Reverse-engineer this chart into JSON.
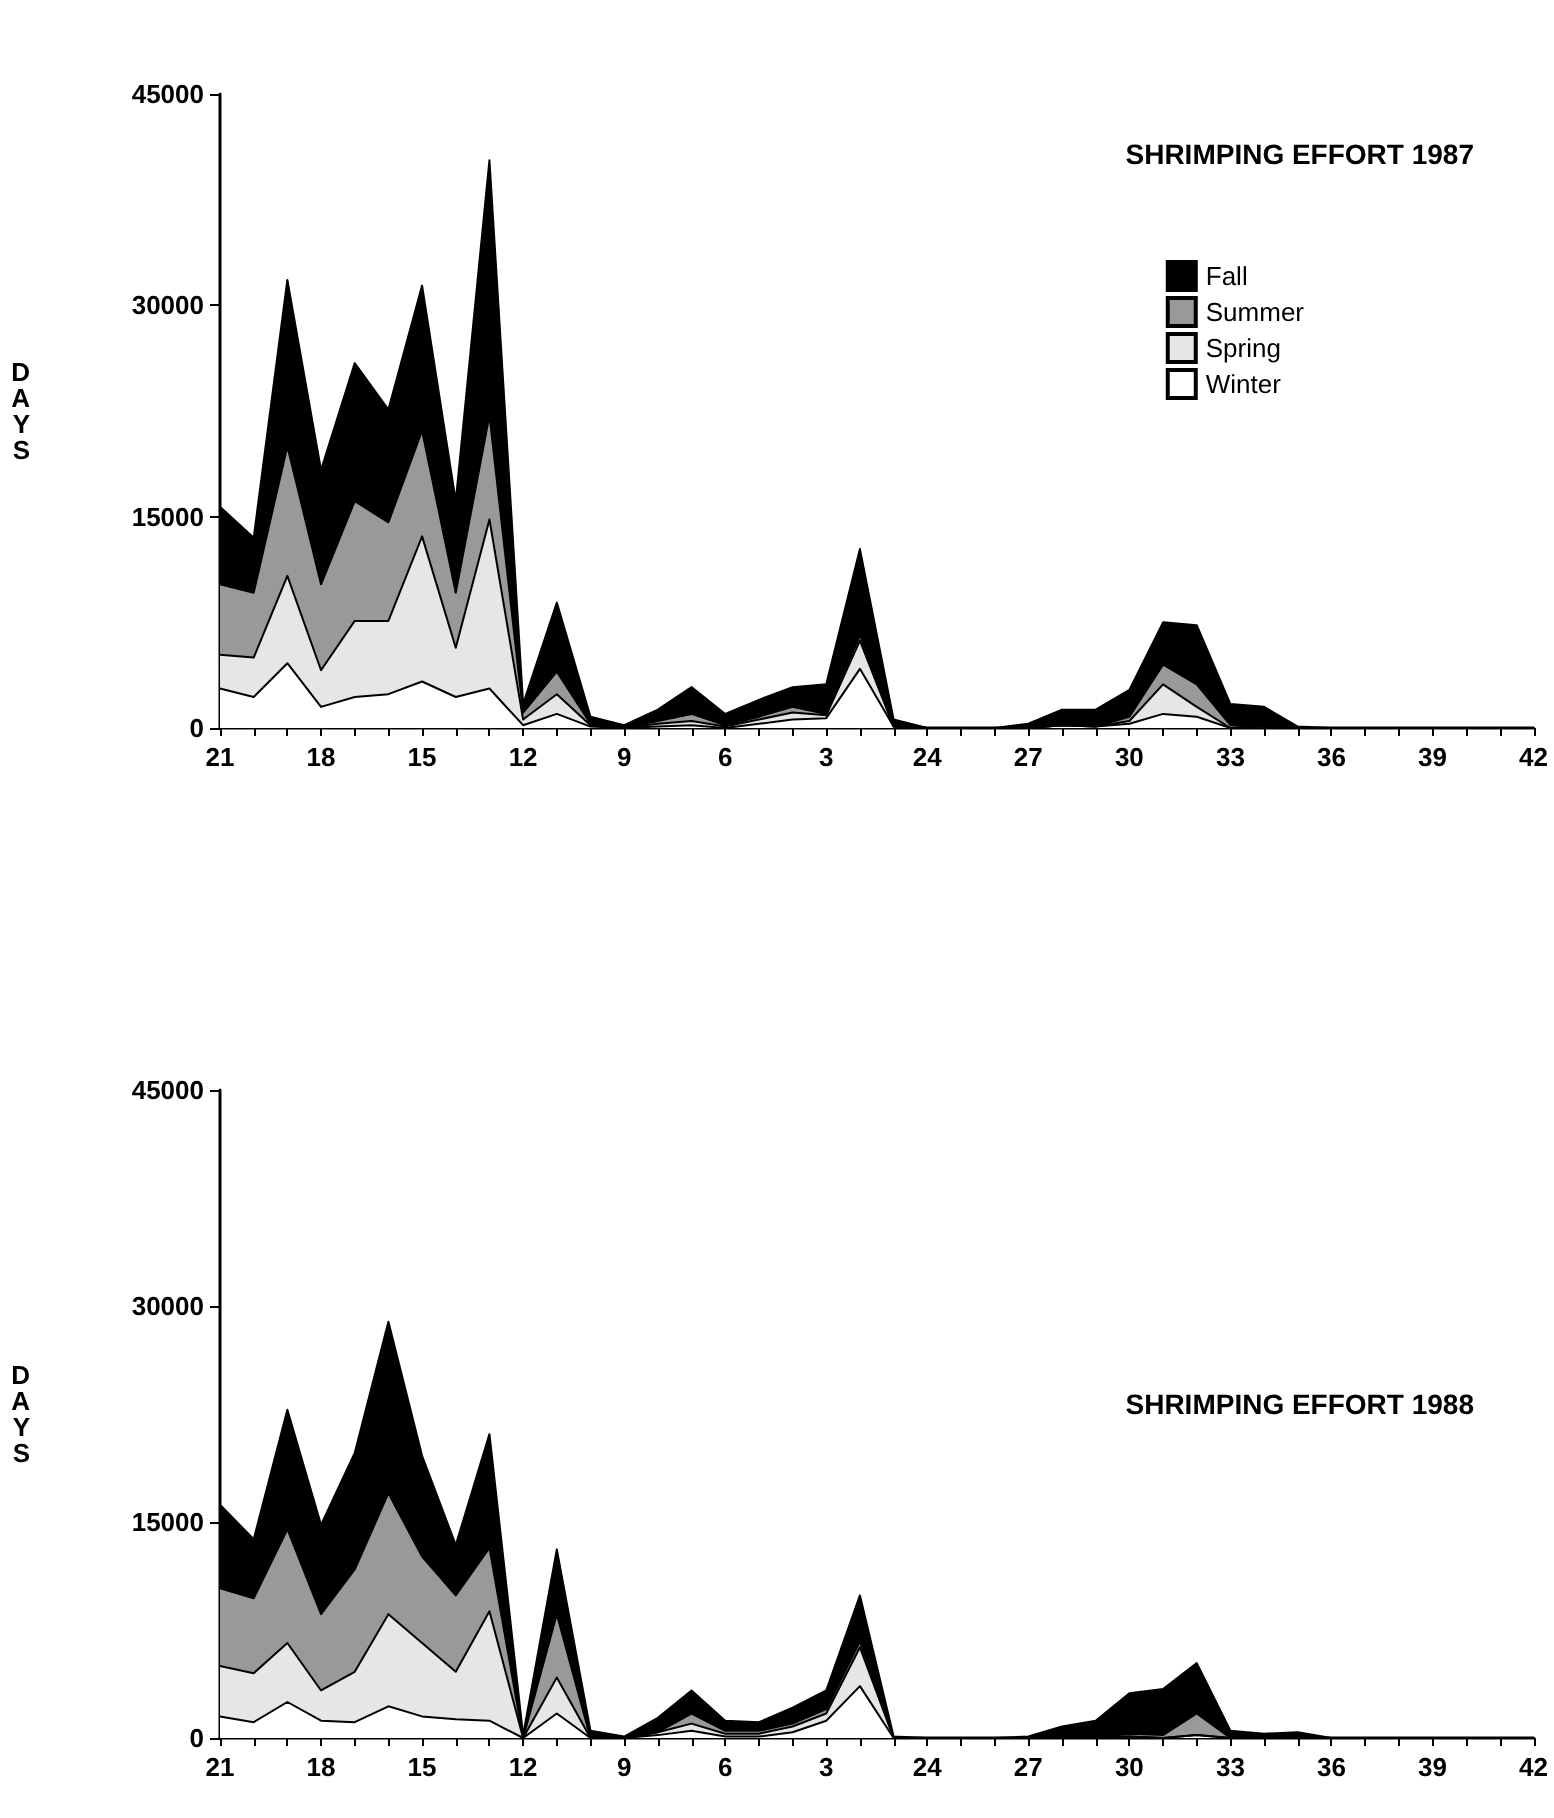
{
  "chart_data": [
    {
      "type": "area",
      "title": "SHRIMPING EFFORT 1987",
      "ylabel": "DAYS",
      "stacked": true,
      "legend": "top right",
      "categories": [
        "21",
        null,
        null,
        "18",
        null,
        null,
        "15",
        null,
        null,
        "12",
        null,
        null,
        "9",
        null,
        null,
        "6",
        null,
        null,
        "3",
        null,
        null,
        "24",
        null,
        null,
        "27",
        null,
        null,
        "30",
        null,
        null,
        "33",
        null,
        null,
        "36",
        null,
        null,
        "39",
        null,
        null,
        "42"
      ],
      "ylim": [
        0,
        45000
      ],
      "yticks": [
        0,
        15000,
        30000,
        45000
      ],
      "series": [
        {
          "name": "Winter",
          "color": "#ffffff",
          "values": [
            2800,
            2200,
            4600,
            1500,
            2200,
            2400,
            3300,
            2200,
            2800,
            200,
            1000,
            100,
            0,
            100,
            200,
            0,
            300,
            600,
            700,
            4200,
            100,
            0,
            0,
            0,
            0,
            200,
            100,
            300,
            1000,
            800,
            0,
            100,
            0,
            0,
            0,
            0,
            0,
            0,
            0,
            0
          ]
        },
        {
          "name": "Spring",
          "color": "#e6e6e6",
          "values": [
            2400,
            2800,
            6200,
            2600,
            5400,
            5200,
            10300,
            3500,
            12000,
            400,
            1400,
            100,
            0,
            200,
            300,
            100,
            300,
            500,
            200,
            2000,
            0,
            0,
            0,
            0,
            0,
            0,
            0,
            200,
            2100,
            700,
            0,
            0,
            0,
            0,
            0,
            0,
            0,
            0,
            0,
            0
          ]
        },
        {
          "name": "Summer",
          "color": "#999999",
          "values": [
            5000,
            4600,
            9200,
            6100,
            8500,
            7000,
            7500,
            3900,
            7400,
            500,
            1600,
            100,
            0,
            200,
            500,
            100,
            200,
            400,
            100,
            400,
            0,
            0,
            0,
            0,
            0,
            0,
            0,
            300,
            1400,
            1600,
            200,
            0,
            0,
            0,
            0,
            0,
            0,
            0,
            0,
            0
          ]
        },
        {
          "name": "Fall",
          "color": "#000000",
          "values": [
            5500,
            3900,
            11800,
            8100,
            9800,
            8000,
            10300,
            6500,
            18100,
            600,
            4900,
            500,
            200,
            800,
            1900,
            800,
            1200,
            1400,
            2100,
            6100,
            500,
            0,
            0,
            0,
            300,
            1100,
            1200,
            1900,
            3000,
            4200,
            1500,
            1400,
            100,
            0,
            0,
            0,
            0,
            0,
            0,
            0
          ]
        }
      ]
    },
    {
      "type": "area",
      "title": "SHRIMPING EFFORT 1988",
      "ylabel": "DAYS",
      "stacked": true,
      "categories": [
        "21",
        null,
        null,
        "18",
        null,
        null,
        "15",
        null,
        null,
        "12",
        null,
        null,
        "9",
        null,
        null,
        "6",
        null,
        null,
        "3",
        null,
        null,
        "24",
        null,
        null,
        "27",
        null,
        null,
        "30",
        null,
        null,
        "33",
        null,
        null,
        "36",
        null,
        null,
        "39",
        null,
        null,
        "42"
      ],
      "ylim": [
        0,
        45000
      ],
      "yticks": [
        0,
        15000,
        30000,
        45000
      ],
      "series": [
        {
          "color": "#ffffff",
          "values": [
            1500,
            1100,
            2500,
            1200,
            1100,
            2200,
            1500,
            1300,
            1200,
            0,
            1700,
            0,
            0,
            200,
            500,
            100,
            100,
            400,
            1200,
            3600,
            0,
            0,
            0,
            0,
            0,
            0,
            0,
            100,
            0,
            200,
            0,
            0,
            0,
            0,
            null,
            null,
            null,
            null,
            null,
            null
          ]
        },
        {
          "color": "#e6e6e6",
          "values": [
            3500,
            3400,
            4100,
            2100,
            3500,
            6400,
            5100,
            3300,
            7600,
            0,
            2500,
            0,
            0,
            200,
            500,
            200,
            200,
            400,
            500,
            2700,
            0,
            0,
            0,
            0,
            0,
            0,
            0,
            0,
            0,
            0,
            0,
            0,
            0,
            0,
            null,
            null,
            null,
            null,
            null,
            null
          ]
        },
        {
          "color": "#999999",
          "values": [
            5400,
            5200,
            7900,
            5300,
            7100,
            8400,
            6000,
            5300,
            4400,
            0,
            4400,
            0,
            0,
            0,
            700,
            200,
            200,
            200,
            300,
            400,
            0,
            0,
            0,
            0,
            0,
            0,
            0,
            200,
            200,
            1500,
            0,
            0,
            0,
            0,
            null,
            null,
            null,
            null,
            null,
            null
          ]
        },
        {
          "color": "#000000",
          "values": [
            5800,
            4100,
            8300,
            6200,
            8100,
            11900,
            7000,
            3500,
            7900,
            200,
            4500,
            500,
            100,
            1000,
            1600,
            700,
            600,
            1100,
            1300,
            3200,
            100,
            0,
            0,
            0,
            100,
            800,
            1200,
            2800,
            3200,
            3500,
            500,
            300,
            400,
            0,
            null,
            null,
            null,
            null,
            null,
            null
          ]
        }
      ]
    }
  ]
}
